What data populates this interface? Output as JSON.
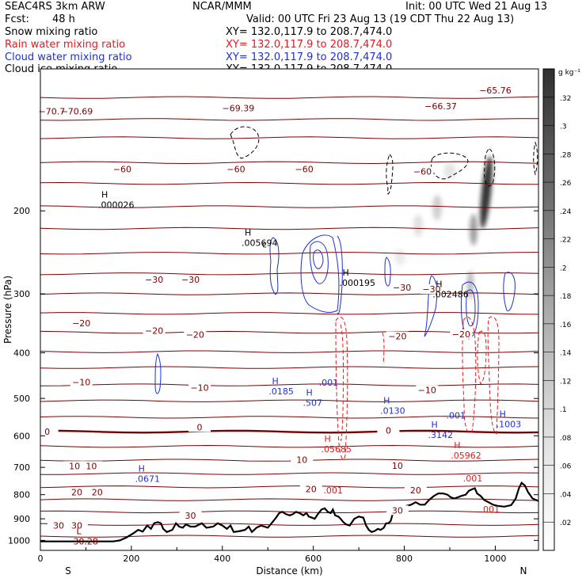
{
  "header": {
    "model_left": "SEAC4RS   3km ARW",
    "model_center": "NCAR/MMM",
    "init": "Init: 00 UTC Wed 21 Aug 13",
    "fcst_label": "Fcst:",
    "fcst_value": "48 h",
    "valid": "Valid: 00 UTC Fri 23 Aug 13 (19 CDT Thu 22 Aug 13)",
    "fields": [
      {
        "label": "Snow mixing ratio",
        "xy": "XY=  132.0,117.9  to  208.7,474.0",
        "color": "#000000"
      },
      {
        "label": "Rain water mixing ratio",
        "xy": "XY=  132.0,117.9  to  208.7,474.0",
        "color": "#e41a1c"
      },
      {
        "label": "Cloud water mixing ratio",
        "xy": "XY=  132.0,117.9  to  208.7,474.0",
        "color": "#1f2fd6"
      },
      {
        "label": "Cloud ice mixing ratio",
        "xy": "XY=  132.0,117.9  to  208.7,474.0",
        "color": "#000000"
      }
    ]
  },
  "chart_data": {
    "type": "cross-section",
    "xlabel": "Distance (km)",
    "ylabel": "Pressure (hPa)",
    "x_ticks": [
      0,
      200,
      400,
      600,
      800,
      1000
    ],
    "y_ticks": [
      200,
      300,
      400,
      500,
      600,
      700,
      800,
      900,
      1000
    ],
    "xlim": [
      0,
      1095
    ],
    "ylim": [
      1050,
      100
    ],
    "y_scale": "log",
    "endpoints": {
      "left": "S",
      "right": "N"
    },
    "colorbar": {
      "unit": "g kg⁻¹",
      "ticks": [
        ".02",
        ".04",
        ".06",
        ".08",
        ".1",
        ".12",
        ".14",
        ".16",
        ".18",
        ".2",
        ".22",
        ".24",
        ".26",
        ".28",
        ".3",
        ".32"
      ],
      "min": 0,
      "max": 0.34
    },
    "temperature_labels": [
      {
        "x": 25,
        "p": 123,
        "text": "−70.7"
      },
      {
        "x": 80,
        "p": 123,
        "text": "−70.69"
      },
      {
        "x": 435,
        "p": 121,
        "text": "−69.39"
      },
      {
        "x": 880,
        "p": 120,
        "text": "−66.37"
      },
      {
        "x": 1000,
        "p": 111,
        "text": "−65.76"
      },
      {
        "x": 180,
        "p": 163,
        "text": "−60"
      },
      {
        "x": 430,
        "p": 163,
        "text": "−60"
      },
      {
        "x": 580,
        "p": 163,
        "text": "−60"
      },
      {
        "x": 840,
        "p": 165,
        "text": "−60"
      },
      {
        "x": 250,
        "p": 280,
        "text": "−30"
      },
      {
        "x": 330,
        "p": 280,
        "text": "−30"
      },
      {
        "x": 795,
        "p": 291,
        "text": "−30"
      },
      {
        "x": 860,
        "p": 293,
        "text": "−30"
      },
      {
        "x": 90,
        "p": 346,
        "text": "−20"
      },
      {
        "x": 250,
        "p": 359,
        "text": "−20"
      },
      {
        "x": 340,
        "p": 366,
        "text": "−20"
      },
      {
        "x": 785,
        "p": 369,
        "text": "−20"
      },
      {
        "x": 925,
        "p": 365,
        "text": "−20"
      },
      {
        "x": 90,
        "p": 462,
        "text": "−10"
      },
      {
        "x": 350,
        "p": 474,
        "text": "−10"
      },
      {
        "x": 850,
        "p": 480,
        "text": "−10"
      },
      {
        "x": 15,
        "p": 588,
        "text": "0"
      },
      {
        "x": 350,
        "p": 575,
        "text": "0"
      },
      {
        "x": 765,
        "p": 584,
        "text": "0"
      },
      {
        "x": 75,
        "p": 695,
        "text": "10"
      },
      {
        "x": 112,
        "p": 695,
        "text": "10"
      },
      {
        "x": 575,
        "p": 674,
        "text": "10"
      },
      {
        "x": 785,
        "p": 694,
        "text": "10"
      },
      {
        "x": 80,
        "p": 790,
        "text": "20"
      },
      {
        "x": 125,
        "p": 790,
        "text": "20"
      },
      {
        "x": 595,
        "p": 778,
        "text": "20"
      },
      {
        "x": 825,
        "p": 782,
        "text": "20"
      },
      {
        "x": 40,
        "p": 930,
        "text": "30"
      },
      {
        "x": 80,
        "p": 930,
        "text": "30"
      },
      {
        "x": 330,
        "p": 885,
        "text": "30"
      },
      {
        "x": 785,
        "p": 863,
        "text": "30"
      }
    ],
    "hl_markers": [
      {
        "x": 100,
        "p": 988,
        "letter": "L",
        "value": "30.28",
        "color": "#7a0000"
      },
      {
        "x": 155,
        "p": 191,
        "letter": "H",
        "value": ".000026",
        "color": "#000000"
      },
      {
        "x": 470,
        "p": 230,
        "letter": "H",
        "value": ".005694",
        "color": "#000000"
      },
      {
        "x": 685,
        "p": 280,
        "letter": "H",
        "value": ".000195",
        "color": "#000000"
      },
      {
        "x": 890,
        "p": 296,
        "letter": "H",
        "value": ".002486",
        "color": "#000000"
      },
      {
        "x": 530,
        "p": 475,
        "letter": "H",
        "value": ".0185",
        "color": "#1f2fd6"
      },
      {
        "x": 605,
        "p": 503,
        "letter": "H",
        "value": ".507",
        "color": "#1f2fd6"
      },
      {
        "x": 640,
        "p": 455,
        "letter": "",
        "value": ".001",
        "color": "#1f2fd6"
      },
      {
        "x": 775,
        "p": 522,
        "letter": "H",
        "value": ".0130",
        "color": "#1f2fd6"
      },
      {
        "x": 920,
        "p": 535,
        "letter": "",
        "value": ".001",
        "color": "#1f2fd6"
      },
      {
        "x": 880,
        "p": 588,
        "letter": "H",
        "value": ".3142",
        "color": "#1f2fd6"
      },
      {
        "x": 1030,
        "p": 558,
        "letter": "H",
        "value": ".1003",
        "color": "#1f2fd6"
      },
      {
        "x": 236,
        "p": 728,
        "letter": "H",
        "value": ".0671",
        "color": "#1f2fd6"
      },
      {
        "x": 645,
        "p": 630,
        "letter": "H",
        "value": ".05685",
        "color": "#e41a1c"
      },
      {
        "x": 930,
        "p": 650,
        "letter": "H",
        "value": ".05962",
        "color": "#e41a1c"
      },
      {
        "x": 957,
        "p": 727,
        "letter": "",
        "value": ".001",
        "color": "#e41a1c"
      },
      {
        "x": 650,
        "p": 770,
        "letter": "",
        "value": ".001",
        "color": "#e41a1c"
      },
      {
        "x": 995,
        "p": 845,
        "letter": "",
        "value": ".001",
        "color": "#e41a1c"
      },
      {
        "x": 515,
        "p": 232,
        "letter": "",
        "value": "c",
        "color": "#000000"
      }
    ],
    "terrain": [
      [
        0,
        1005
      ],
      [
        160,
        1005
      ],
      [
        175,
        1000
      ],
      [
        190,
        985
      ],
      [
        205,
        965
      ],
      [
        215,
        950
      ],
      [
        225,
        958
      ],
      [
        235,
        930
      ],
      [
        243,
        945
      ],
      [
        250,
        920
      ],
      [
        258,
        915
      ],
      [
        265,
        920
      ],
      [
        270,
        945
      ],
      [
        278,
        960
      ],
      [
        290,
        950
      ],
      [
        298,
        920
      ],
      [
        305,
        935
      ],
      [
        313,
        940
      ],
      [
        320,
        925
      ],
      [
        330,
        935
      ],
      [
        340,
        935
      ],
      [
        355,
        920
      ],
      [
        365,
        940
      ],
      [
        380,
        935
      ],
      [
        390,
        920
      ],
      [
        400,
        930
      ],
      [
        410,
        945
      ],
      [
        418,
        930
      ],
      [
        425,
        960
      ],
      [
        440,
        955
      ],
      [
        450,
        950
      ],
      [
        458,
        935
      ],
      [
        465,
        960
      ],
      [
        475,
        940
      ],
      [
        485,
        930
      ],
      [
        500,
        940
      ],
      [
        510,
        915
      ],
      [
        518,
        895
      ],
      [
        525,
        875
      ],
      [
        532,
        870
      ],
      [
        540,
        880
      ],
      [
        548,
        885
      ],
      [
        555,
        880
      ],
      [
        562,
        870
      ],
      [
        570,
        875
      ],
      [
        578,
        885
      ],
      [
        585,
        875
      ],
      [
        590,
        890
      ],
      [
        597,
        895
      ],
      [
        603,
        900
      ],
      [
        610,
        880
      ],
      [
        618,
        860
      ],
      [
        625,
        855
      ],
      [
        632,
        870
      ],
      [
        638,
        875
      ],
      [
        643,
        860
      ],
      [
        648,
        885
      ],
      [
        655,
        890
      ],
      [
        660,
        900
      ],
      [
        666,
        915
      ],
      [
        672,
        925
      ],
      [
        680,
        930
      ],
      [
        690,
        900
      ],
      [
        700,
        890
      ],
      [
        710,
        895
      ],
      [
        716,
        930
      ],
      [
        722,
        950
      ],
      [
        728,
        960
      ],
      [
        735,
        955
      ],
      [
        742,
        945
      ],
      [
        748,
        950
      ],
      [
        755,
        940
      ],
      [
        760,
        920
      ],
      [
        765,
        920
      ],
      [
        770,
        910
      ],
      [
        775,
        875
      ],
      [
        785,
        870
      ],
      [
        795,
        855
      ],
      [
        805,
        845
      ],
      [
        815,
        840
      ],
      [
        825,
        830
      ],
      [
        835,
        840
      ],
      [
        845,
        840
      ],
      [
        855,
        820
      ],
      [
        865,
        805
      ],
      [
        875,
        795
      ],
      [
        885,
        795
      ],
      [
        895,
        800
      ],
      [
        902,
        810
      ],
      [
        910,
        815
      ],
      [
        918,
        810
      ],
      [
        925,
        805
      ],
      [
        935,
        800
      ],
      [
        942,
        785
      ],
      [
        948,
        780
      ],
      [
        955,
        775
      ],
      [
        960,
        795
      ],
      [
        968,
        805
      ],
      [
        975,
        820
      ],
      [
        985,
        830
      ],
      [
        995,
        840
      ],
      [
        1005,
        845
      ],
      [
        1020,
        848
      ],
      [
        1035,
        842
      ],
      [
        1045,
        815
      ],
      [
        1052,
        775
      ],
      [
        1058,
        755
      ],
      [
        1065,
        765
      ],
      [
        1072,
        790
      ],
      [
        1082,
        815
      ],
      [
        1095,
        825
      ]
    ]
  }
}
